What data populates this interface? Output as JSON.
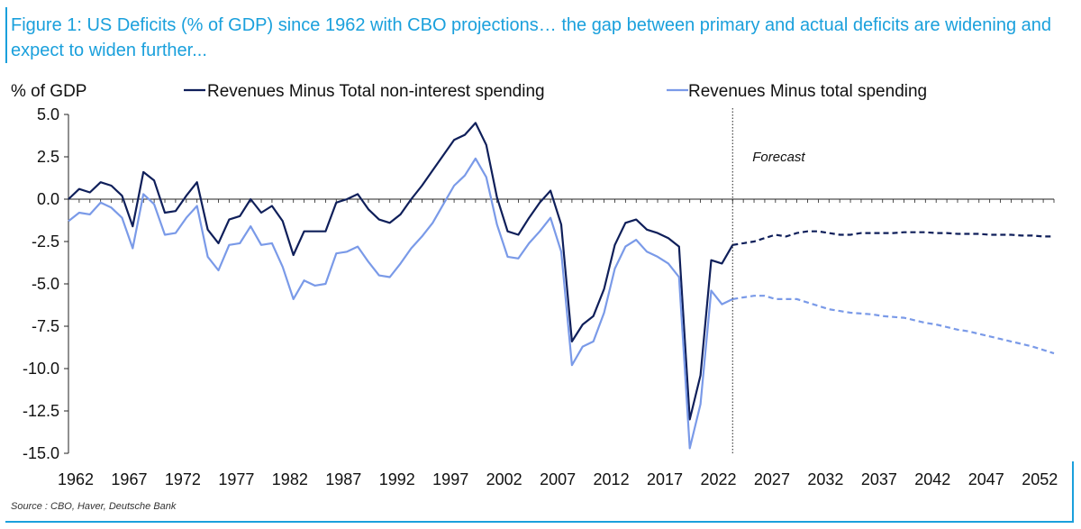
{
  "title": "Figure 1: US Deficits (% of GDP) since 1962 with CBO projections… the gap between primary and actual deficits are widening and expect to widen further...",
  "source": "Source : CBO, Haver, Deutsche Bank",
  "colors": {
    "primary": "#0f1f5a",
    "total": "#7a9ae8",
    "accent": "#1aa0dc"
  },
  "chart_data": {
    "type": "line",
    "ylabel": "% of GDP",
    "ylim": [
      -15,
      5
    ],
    "yticks": [
      "5.0",
      "2.5",
      "0.0",
      "-2.5",
      "-5.0",
      "-7.5",
      "-10.0",
      "-12.5",
      "-15.0"
    ],
    "ytick_values": [
      5,
      2.5,
      0,
      -2.5,
      -5,
      -7.5,
      -10,
      -12.5,
      -15
    ],
    "xlim": [
      1962,
      2054
    ],
    "xticks": [
      "1962",
      "1967",
      "1972",
      "1977",
      "1982",
      "1987",
      "1992",
      "1997",
      "2002",
      "2007",
      "2012",
      "2017",
      "2022",
      "2027",
      "2032",
      "2037",
      "2042",
      "2047",
      "2052"
    ],
    "xtick_values": [
      1962,
      1967,
      1972,
      1977,
      1982,
      1987,
      1992,
      1997,
      2002,
      2007,
      2012,
      2017,
      2022,
      2027,
      2032,
      2037,
      2042,
      2047,
      2052
    ],
    "forecast_start": 2024,
    "annotation": "Forecast",
    "series": [
      {
        "name": "Revenues Minus Total non-interest spending",
        "color": "#0f1f5a",
        "actual": {
          "x": [
            1962,
            1963,
            1964,
            1965,
            1966,
            1967,
            1968,
            1969,
            1970,
            1971,
            1972,
            1973,
            1974,
            1975,
            1976,
            1977,
            1978,
            1979,
            1980,
            1981,
            1982,
            1983,
            1984,
            1985,
            1986,
            1987,
            1988,
            1989,
            1990,
            1991,
            1992,
            1993,
            1994,
            1995,
            1996,
            1997,
            1998,
            1999,
            2000,
            2001,
            2002,
            2003,
            2004,
            2005,
            2006,
            2007,
            2008,
            2009,
            2010,
            2011,
            2012,
            2013,
            2014,
            2015,
            2016,
            2017,
            2018,
            2019,
            2020,
            2021,
            2022,
            2023,
            2024
          ],
          "y": [
            0.0,
            0.6,
            0.4,
            1.0,
            0.8,
            0.2,
            -1.6,
            1.6,
            1.1,
            -0.8,
            -0.7,
            0.2,
            1.0,
            -1.8,
            -2.6,
            -1.2,
            -1.0,
            0.0,
            -0.8,
            -0.4,
            -1.3,
            -3.3,
            -1.9,
            -1.9,
            -1.9,
            -0.2,
            0.0,
            0.3,
            -0.6,
            -1.2,
            -1.4,
            -0.9,
            0.0,
            0.8,
            1.7,
            2.6,
            3.5,
            3.8,
            4.5,
            3.2,
            0.1,
            -1.9,
            -2.1,
            -1.1,
            -0.2,
            0.5,
            -1.5,
            -8.4,
            -7.4,
            -6.9,
            -5.3,
            -2.7,
            -1.4,
            -1.2,
            -1.8,
            -2.0,
            -2.3,
            -2.8,
            -13.0,
            -10.4,
            -3.6,
            -3.8,
            -2.7
          ]
        },
        "forecast": {
          "x": [
            2024,
            2025,
            2026,
            2027,
            2028,
            2029,
            2030,
            2031,
            2032,
            2033,
            2034,
            2035,
            2036,
            2037,
            2038,
            2039,
            2040,
            2041,
            2042,
            2043,
            2044,
            2045,
            2046,
            2047,
            2048,
            2049,
            2050,
            2051,
            2052,
            2053,
            2054
          ],
          "y": [
            -2.7,
            -2.6,
            -2.5,
            -2.3,
            -2.1,
            -2.2,
            -2.0,
            -1.9,
            -1.9,
            -2.0,
            -2.1,
            -2.1,
            -2.0,
            -2.0,
            -2.0,
            -2.0,
            -1.95,
            -1.95,
            -1.95,
            -2.0,
            -2.0,
            -2.05,
            -2.05,
            -2.05,
            -2.1,
            -2.1,
            -2.1,
            -2.15,
            -2.15,
            -2.2,
            -2.2
          ]
        }
      },
      {
        "name": "Revenues Minus total spending",
        "color": "#7a9ae8",
        "actual": {
          "x": [
            1962,
            1963,
            1964,
            1965,
            1966,
            1967,
            1968,
            1969,
            1970,
            1971,
            1972,
            1973,
            1974,
            1975,
            1976,
            1977,
            1978,
            1979,
            1980,
            1981,
            1982,
            1983,
            1984,
            1985,
            1986,
            1987,
            1988,
            1989,
            1990,
            1991,
            1992,
            1993,
            1994,
            1995,
            1996,
            1997,
            1998,
            1999,
            2000,
            2001,
            2002,
            2003,
            2004,
            2005,
            2006,
            2007,
            2008,
            2009,
            2010,
            2011,
            2012,
            2013,
            2014,
            2015,
            2016,
            2017,
            2018,
            2019,
            2020,
            2021,
            2022,
            2023,
            2024
          ],
          "y": [
            -1.3,
            -0.8,
            -0.9,
            -0.2,
            -0.5,
            -1.1,
            -2.9,
            0.3,
            -0.3,
            -2.1,
            -2.0,
            -1.1,
            -0.4,
            -3.4,
            -4.2,
            -2.7,
            -2.6,
            -1.6,
            -2.7,
            -2.6,
            -4.0,
            -5.9,
            -4.8,
            -5.1,
            -5.0,
            -3.2,
            -3.1,
            -2.8,
            -3.7,
            -4.5,
            -4.6,
            -3.8,
            -2.9,
            -2.2,
            -1.4,
            -0.3,
            0.8,
            1.4,
            2.4,
            1.3,
            -1.5,
            -3.4,
            -3.5,
            -2.6,
            -1.9,
            -1.1,
            -3.1,
            -9.8,
            -8.7,
            -8.4,
            -6.7,
            -4.1,
            -2.8,
            -2.4,
            -3.1,
            -3.4,
            -3.8,
            -4.6,
            -14.7,
            -12.1,
            -5.4,
            -6.2,
            -5.9
          ]
        },
        "forecast": {
          "x": [
            2024,
            2025,
            2026,
            2027,
            2028,
            2029,
            2030,
            2031,
            2032,
            2033,
            2034,
            2035,
            2036,
            2037,
            2038,
            2039,
            2040,
            2041,
            2042,
            2043,
            2044,
            2045,
            2046,
            2047,
            2048,
            2049,
            2050,
            2051,
            2052,
            2053,
            2054
          ],
          "y": [
            -5.9,
            -5.8,
            -5.7,
            -5.7,
            -5.9,
            -5.9,
            -5.9,
            -6.1,
            -6.3,
            -6.5,
            -6.6,
            -6.7,
            -6.75,
            -6.8,
            -6.9,
            -6.95,
            -7.0,
            -7.15,
            -7.3,
            -7.4,
            -7.55,
            -7.7,
            -7.8,
            -7.95,
            -8.1,
            -8.25,
            -8.4,
            -8.55,
            -8.7,
            -8.9,
            -9.1
          ]
        }
      }
    ]
  }
}
